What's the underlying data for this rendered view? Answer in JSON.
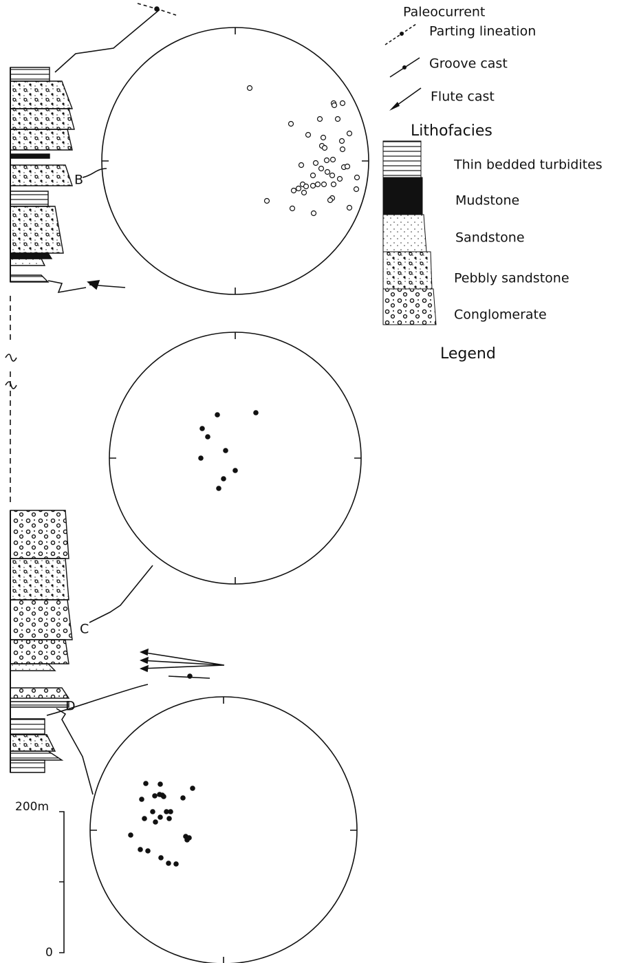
{
  "legend": {
    "paleocurrent": {
      "title": "Paleocurrent",
      "items": [
        "Parting lineation",
        "Groove cast",
        "Flute cast"
      ]
    },
    "lithofacies": {
      "title": "Lithofacies",
      "items": [
        "Thin bedded turbidites",
        "Mudstone",
        "Sandstone",
        "Pebbly sandstone",
        "Conglomerate"
      ]
    },
    "caption": "Legend"
  },
  "sections": [
    "B",
    "C",
    "D"
  ],
  "scale": {
    "top": "200m",
    "bottom": "0"
  }
}
